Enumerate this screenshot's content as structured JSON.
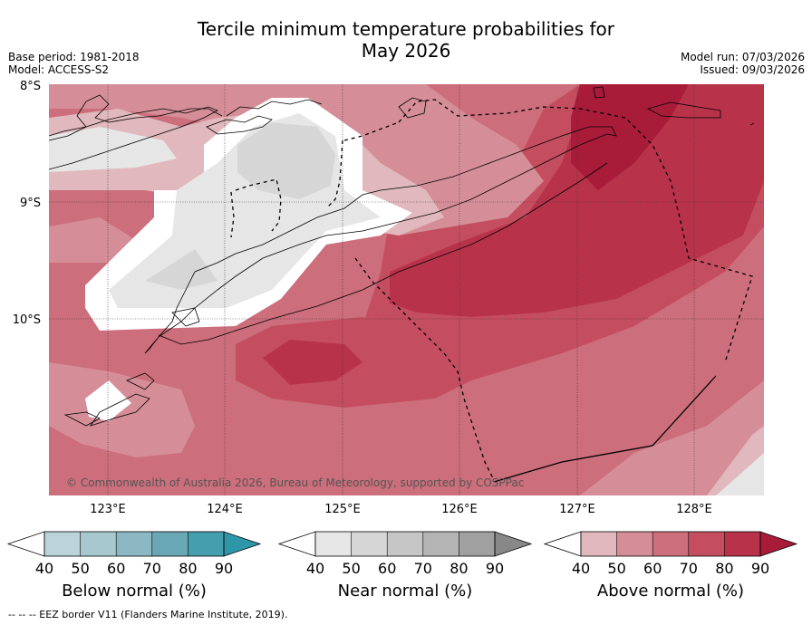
{
  "header": {
    "title_line1": "Tercile minimum temperature probabilities for",
    "title_line2": "May 2026",
    "base_period": "Base period: 1981-2018",
    "model": "Model: ACCESS-S2",
    "model_run": "Model run: 07/03/2026",
    "issued": "Issued: 09/03/2026"
  },
  "map": {
    "lat_labels": [
      "8°S",
      "9°S",
      "10°S"
    ],
    "lon_labels": [
      "123°E",
      "124°E",
      "125°E",
      "126°E",
      "127°E",
      "128°E"
    ],
    "copyright": "© Commonwealth of Australia 2026, Bureau of Meteorology, supported by COSPPac"
  },
  "colorbars": [
    {
      "label": "Below normal (%)",
      "ticks": [
        "40",
        "50",
        "60",
        "70",
        "80",
        "90"
      ],
      "colors": [
        "#ffffff",
        "#bcd3da",
        "#a7c8ce",
        "#8bb8c2",
        "#6aa7b4",
        "#459eae",
        "#2e96a9"
      ]
    },
    {
      "label": "Near normal (%)",
      "ticks": [
        "40",
        "50",
        "60",
        "70",
        "80",
        "90"
      ],
      "colors": [
        "#ffffff",
        "#e6e6e6",
        "#d6d6d6",
        "#c6c6c6",
        "#b4b4b4",
        "#a0a0a0",
        "#888888"
      ]
    },
    {
      "label": "Above normal (%)",
      "ticks": [
        "40",
        "50",
        "60",
        "70",
        "80",
        "90"
      ],
      "colors": [
        "#ffffff",
        "#e0b8bd",
        "#d58e98",
        "#cc6e7b",
        "#c44e60",
        "#b8334a",
        "#a81c3a"
      ]
    }
  ],
  "footer": {
    "legend": "--  --  -- EEZ border V11 (Flanders Marine Institute, 2019)."
  }
}
